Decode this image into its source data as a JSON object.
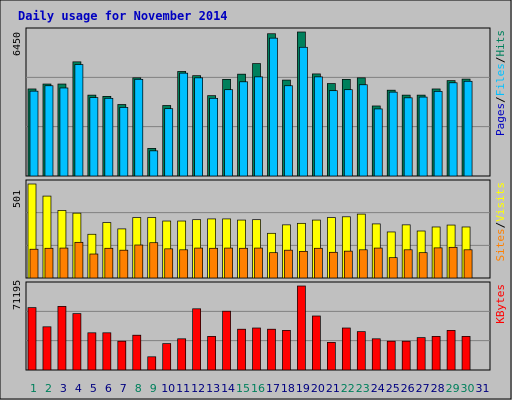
{
  "chart_data": {
    "type": "bar",
    "title": "Daily usage for November 2014",
    "categories": [
      "1",
      "2",
      "3",
      "4",
      "5",
      "6",
      "7",
      "8",
      "9",
      "10",
      "11",
      "12",
      "13",
      "14",
      "15",
      "16",
      "17",
      "18",
      "19",
      "20",
      "21",
      "22",
      "23",
      "24",
      "25",
      "26",
      "27",
      "28",
      "29",
      "30",
      "31"
    ],
    "weekend_days": [
      "1",
      "2",
      "8",
      "9",
      "15",
      "16",
      "22",
      "23",
      "29",
      "30"
    ],
    "panels": [
      {
        "max_label": "6450",
        "legend": [
          "Pages",
          "/",
          "Files",
          "/",
          "Hits"
        ],
        "series": [
          {
            "name": "Hits",
            "color": "#00805c",
            "values": [
              3530,
              3730,
              3730,
              4630,
              3280,
              3230,
              2900,
              3980,
              1120,
              2860,
              4240,
              4070,
              3260,
              3920,
              4130,
              4560,
              5770,
              3890,
              5840,
              4140,
              3750,
              3920,
              3980,
              2840,
              3480,
              3280,
              3280,
              3530,
              3870,
              3930,
              0
            ]
          },
          {
            "name": "Files",
            "color": "#00c0ff",
            "values": [
              3440,
              3660,
              3570,
              4520,
              3180,
              3150,
              2780,
              3920,
              1020,
              2730,
              4170,
              3980,
              3150,
              3500,
              3820,
              4020,
              5590,
              3660,
              5220,
              4020,
              3460,
              3500,
              3700,
              2720,
              3400,
              3170,
              3200,
              3430,
              3780,
              3840,
              0
            ]
          },
          {
            "name": "Pages",
            "color": "#0000c0",
            "values": [
              0,
              0,
              0,
              0,
              0,
              0,
              0,
              0,
              0,
              0,
              0,
              0,
              0,
              0,
              0,
              0,
              0,
              0,
              0,
              0,
              0,
              0,
              0,
              0,
              0,
              0,
              0,
              0,
              0,
              0,
              0
            ]
          }
        ]
      },
      {
        "max_label": "501",
        "legend": [
          "Sites",
          "/",
          "Visits"
        ],
        "series": [
          {
            "name": "Visits",
            "color": "#ffff00",
            "values": [
              490,
              427,
              352,
              338,
              228,
              289,
              256,
              315,
              315,
              297,
              297,
              304,
              308,
              308,
              302,
              304,
              233,
              277,
              285,
              302,
              315,
              319,
              333,
              282,
              240,
              277,
              245,
              266,
              276,
              266,
              0
            ]
          },
          {
            "name": "Sites",
            "color": "#ff8000",
            "values": [
              150,
              155,
              156,
              186,
              125,
              155,
              145,
              172,
              184,
              152,
              147,
              156,
              155,
              156,
              155,
              156,
              132,
              145,
              139,
              155,
              134,
              140,
              147,
              156,
              106,
              147,
              132,
              157,
              160,
              147,
              0
            ]
          }
        ]
      },
      {
        "max_label": "71195",
        "legend": [
          "KBytes"
        ],
        "series": [
          {
            "name": "KBytes",
            "color": "#ff0000",
            "values": [
              52000,
              36000,
              53000,
              47000,
              31000,
              31000,
              24000,
              29000,
              11000,
              22000,
              26000,
              51000,
              28000,
              49000,
              34000,
              35000,
              34000,
              33000,
              70000,
              45000,
              23000,
              35000,
              32000,
              26000,
              24000,
              24000,
              27000,
              28000,
              33000,
              28000,
              0
            ]
          }
        ]
      }
    ]
  },
  "colors": {
    "background": "#c0c0c0",
    "plot_bg": "#c0c0c0",
    "title": "#0000c0",
    "weekday_label": "#000080",
    "weekend_label": "#00805c",
    "grid": "#808080"
  }
}
